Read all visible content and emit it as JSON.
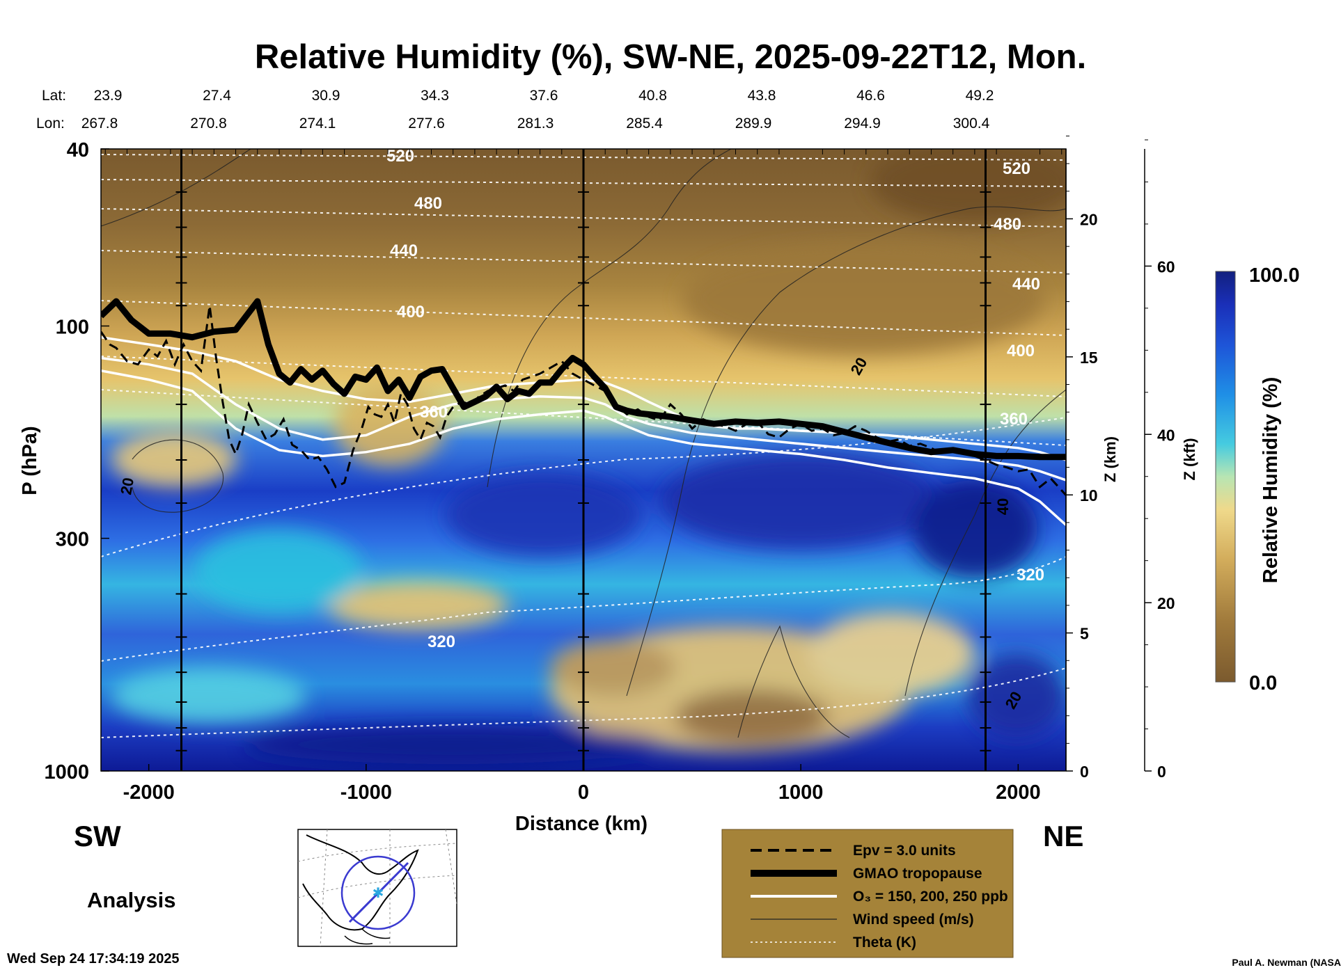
{
  "chart_data": {
    "type": "heatmap",
    "title": "Relative Humidity (%), SW-NE, 2025-09-22T12, Mon.",
    "xlabel": "Distance (km)",
    "ylabel": "P (hPa)",
    "right_axis_km_label": "Z (km)",
    "right_axis_kft_label": "Z (kft)",
    "colorbar_label": "Relative Humidity (%)",
    "colorbar_min_label": "0.0",
    "colorbar_max_label": "100.0",
    "xlim": [
      -2220,
      2220
    ],
    "ylim": [
      1000,
      40
    ],
    "y_scale": "log",
    "x_ticks": [
      -2000,
      -1000,
      0,
      1000,
      2000
    ],
    "x_tick_labels": [
      "-2000",
      "-1000",
      "0",
      "1000",
      "2000"
    ],
    "y_ticks": [
      40,
      100,
      300,
      1000
    ],
    "y_tick_labels": [
      "40",
      "100",
      "300",
      "1000"
    ],
    "z_km_ticks": [
      0,
      5,
      10,
      15,
      20
    ],
    "z_kft_ticks": [
      0,
      20,
      40,
      60
    ],
    "lat_label": "Lat:",
    "lon_label": "Lon:",
    "lat_values": [
      "23.9",
      "27.4",
      "30.9",
      "34.3",
      "37.6",
      "40.8",
      "43.8",
      "46.6",
      "49.2"
    ],
    "lon_values": [
      "267.8",
      "270.8",
      "274.1",
      "277.6",
      "281.3",
      "285.4",
      "289.9",
      "294.9",
      "300.4"
    ],
    "marker_x": [
      -1850,
      0,
      1850
    ],
    "theta_labels": [
      "520",
      "480",
      "440",
      "400",
      "360",
      "320",
      "520",
      "480",
      "440",
      "400",
      "360",
      "320"
    ],
    "wind_labels": [
      "20",
      "20",
      "40",
      "20"
    ],
    "series": [
      {
        "name": "GMAO tropopause",
        "x": [
          -2220,
          -2150,
          -2080,
          -2000,
          -1900,
          -1800,
          -1700,
          -1600,
          -1500,
          -1450,
          -1400,
          -1350,
          -1300,
          -1250,
          -1200,
          -1150,
          -1100,
          -1050,
          -1000,
          -950,
          -900,
          -850,
          -800,
          -750,
          -700,
          -650,
          -600,
          -550,
          -500,
          -450,
          -400,
          -350,
          -300,
          -250,
          -200,
          -150,
          -100,
          -50,
          0,
          50,
          100,
          150,
          200,
          250,
          300,
          400,
          500,
          600,
          700,
          800,
          900,
          1000,
          1100,
          1200,
          1300,
          1400,
          1500,
          1600,
          1700,
          1800,
          1900,
          2000,
          2100,
          2220
        ],
        "pressure": [
          95,
          88,
          97,
          104,
          104,
          106,
          103,
          102,
          88,
          110,
          128,
          134,
          125,
          132,
          126,
          135,
          142,
          130,
          132,
          124,
          140,
          132,
          145,
          130,
          126,
          125,
          138,
          152,
          148,
          144,
          137,
          146,
          140,
          142,
          134,
          134,
          125,
          118,
          122,
          130,
          138,
          152,
          155,
          157,
          158,
          160,
          163,
          166,
          164,
          165,
          164,
          166,
          168,
          173,
          178,
          183,
          188,
          192,
          190,
          194,
          196,
          196,
          197,
          197
        ]
      },
      {
        "name": "Epv = 3.0 units",
        "x": [
          -2220,
          -2180,
          -2150,
          -2100,
          -2050,
          -2000,
          -1960,
          -1920,
          -1880,
          -1840,
          -1800,
          -1760,
          -1720,
          -1690,
          -1660,
          -1630,
          -1600,
          -1570,
          -1540,
          -1500,
          -1460,
          -1420,
          -1380,
          -1340,
          -1300,
          -1260,
          -1220,
          -1180,
          -1140,
          -1100,
          -1060,
          -1020,
          -990,
          -960,
          -930,
          -900,
          -870,
          -840,
          -810,
          -780,
          -750,
          -720,
          -690,
          -660,
          -630,
          -600,
          -560,
          -520,
          -480,
          -440,
          -400,
          -360,
          -320,
          -280,
          -240,
          -200,
          -150,
          -100,
          -50,
          0,
          50,
          100,
          150,
          200,
          250,
          300,
          350,
          400,
          450,
          500,
          550,
          600,
          650,
          700,
          750,
          800,
          850,
          900,
          950,
          1000,
          1050,
          1100,
          1150,
          1200,
          1250,
          1300,
          1350,
          1400,
          1450,
          1500,
          1550,
          1600,
          1650,
          1700,
          1750,
          1800,
          1850,
          1900,
          1950,
          2000,
          2050,
          2100,
          2150,
          2220
        ],
        "pressure": [
          103,
          110,
          112,
          120,
          122,
          113,
          117,
          108,
          122,
          110,
          120,
          126,
          90,
          118,
          148,
          180,
          194,
          175,
          150,
          165,
          180,
          175,
          162,
          185,
          190,
          200,
          197,
          210,
          230,
          225,
          190,
          170,
          152,
          158,
          160,
          150,
          165,
          142,
          150,
          170,
          180,
          165,
          168,
          178,
          160,
          152,
          148,
          150,
          144,
          140,
          138,
          136,
          140,
          132,
          130,
          128,
          124,
          120,
          128,
          132,
          136,
          140,
          150,
          158,
          154,
          160,
          163,
          150,
          158,
          170,
          162,
          166,
          168,
          172,
          166,
          164,
          175,
          178,
          170,
          166,
          172,
          170,
          176,
          174,
          168,
          172,
          178,
          182,
          180,
          186,
          184,
          188,
          194,
          190,
          192,
          196,
          200,
          205,
          208,
          212,
          210,
          230,
          220,
          240
        ]
      },
      {
        "name": "O₃ = 150, 200, 250 ppb",
        "x": [
          -2220,
          -2000,
          -1800,
          -1600,
          -1400,
          -1200,
          -1000,
          -800,
          -600,
          -400,
          -200,
          0,
          100,
          200,
          300,
          400,
          500,
          600,
          700,
          800,
          900,
          1000,
          1200,
          1400,
          1600,
          1800,
          2000,
          2100,
          2220
        ],
        "p150": [
          106,
          110,
          114,
          120,
          132,
          140,
          146,
          148,
          142,
          136,
          134,
          132,
          134,
          140,
          148,
          156,
          164,
          168,
          170,
          170,
          171,
          172,
          174,
          176,
          180,
          184,
          188,
          192,
          200
        ],
        "p200": [
          118,
          122,
          128,
          150,
          170,
          180,
          176,
          160,
          150,
          146,
          144,
          145,
          150,
          160,
          166,
          170,
          174,
          176,
          178,
          180,
          182,
          184,
          188,
          192,
          196,
          200,
          206,
          212,
          222
        ],
        "p250": [
          126,
          132,
          140,
          170,
          190,
          196,
          192,
          184,
          170,
          162,
          158,
          155,
          160,
          168,
          176,
          180,
          184,
          186,
          188,
          190,
          192,
          194,
          200,
          208,
          214,
          220,
          232,
          248,
          280
        ]
      }
    ]
  },
  "labels": {
    "sw": "SW",
    "ne": "NE",
    "analysis": "Analysis",
    "timestamp": "Wed Sep 24 17:34:19 2025",
    "credit": "Paul A. Newman (NASA"
  },
  "legend": {
    "items": [
      {
        "style": "dashed",
        "label": "Epv = 3.0 units"
      },
      {
        "style": "thick",
        "label": "GMAO tropopause"
      },
      {
        "style": "white",
        "label": "O₃ = 150, 200, 250 ppb"
      },
      {
        "style": "thin",
        "label": "Wind speed (m/s)"
      },
      {
        "style": "dotted",
        "label": "Theta (K)"
      }
    ],
    "background": "#a58339"
  },
  "colors": {
    "dry": "#7d5a2c",
    "mid": "#e2bf68",
    "moist": "#2f5bd3",
    "saturated": "#0a1a8c",
    "cyan": "#39c3dc"
  }
}
